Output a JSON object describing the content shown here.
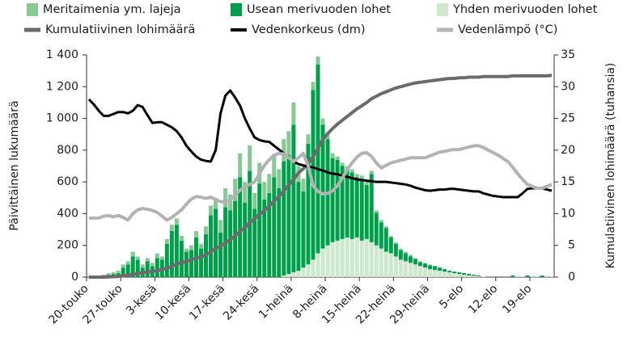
{
  "chart_data": {
    "type": "bar",
    "stacked": true,
    "y_label": "Päivittäinen lukumäärä",
    "y2_label": "Kumulatiivinen lohimäärä (tuhansia)",
    "categories": [
      "20-touko",
      null,
      null,
      null,
      null,
      null,
      null,
      "27-touko",
      null,
      null,
      null,
      null,
      null,
      null,
      "3-kesä",
      null,
      null,
      null,
      null,
      null,
      null,
      "10-kesä",
      null,
      null,
      null,
      null,
      null,
      null,
      "17-kesä",
      null,
      null,
      null,
      null,
      null,
      null,
      "24-kesä",
      null,
      null,
      null,
      null,
      null,
      null,
      "1-heinä",
      null,
      null,
      null,
      null,
      null,
      null,
      "8-heinä",
      null,
      null,
      null,
      null,
      null,
      null,
      "15-heinä",
      null,
      null,
      null,
      null,
      null,
      null,
      "22-heinä",
      null,
      null,
      null,
      null,
      null,
      null,
      "29-heinä",
      null,
      null,
      null,
      null,
      null,
      null,
      "5-elo",
      null,
      null,
      null,
      null,
      null,
      null,
      "12-elo",
      null,
      null,
      null,
      null,
      null,
      null,
      "19-elo",
      null,
      null,
      null,
      null
    ],
    "ylim": [
      0,
      1400
    ],
    "yticks": [
      0,
      200,
      400,
      600,
      800,
      {
        "value": 1000,
        "label": "1 000"
      },
      {
        "value": 1200,
        "label": "1 200"
      },
      {
        "value": 1400,
        "label": "1 400"
      }
    ],
    "y2lim": [
      0,
      35
    ],
    "y2ticks": [
      0,
      5,
      10,
      15,
      20,
      25,
      30,
      35
    ],
    "series": [
      {
        "name": "Meritaimenia ym. lajeja",
        "color": "#86c994",
        "values": [
          0,
          0,
          0,
          5,
          10,
          10,
          15,
          20,
          20,
          30,
          20,
          20,
          20,
          20,
          30,
          20,
          30,
          40,
          40,
          30,
          20,
          30,
          40,
          30,
          50,
          60,
          70,
          80,
          120,
          100,
          140,
          150,
          130,
          160,
          100,
          130,
          110,
          120,
          130,
          120,
          140,
          150,
          140,
          100,
          80,
          60,
          50,
          50,
          40,
          30,
          30,
          20,
          20,
          20,
          20,
          20,
          20,
          20,
          20,
          15,
          15,
          10,
          10,
          10,
          10,
          10,
          10,
          5,
          5,
          5,
          5,
          0,
          0,
          0,
          0,
          0,
          0,
          0,
          0,
          0,
          0,
          0,
          0,
          0,
          0,
          0,
          0,
          0,
          0,
          0,
          0,
          0,
          0,
          0,
          0,
          0
        ]
      },
      {
        "name": "Usean merivuoden lohet",
        "color": "#00a04b",
        "values": [
          0,
          0,
          0,
          10,
          15,
          20,
          25,
          60,
          80,
          130,
          110,
          60,
          100,
          70,
          120,
          110,
          210,
          290,
          330,
          230,
          160,
          170,
          250,
          180,
          270,
          390,
          430,
          280,
          440,
          420,
          480,
          630,
          470,
          670,
          430,
          590,
          490,
          530,
          630,
          560,
          720,
          750,
          930,
          560,
          480,
          760,
          1070,
          1190,
          780,
          670,
          530,
          510,
          460,
          430,
          420,
          380,
          390,
          340,
          430,
          205,
          165,
          150,
          100,
          80,
          60,
          50,
          40,
          35,
          25,
          25,
          25,
          25,
          20,
          15,
          10,
          10,
          10,
          10,
          10,
          7,
          5,
          0,
          0,
          0,
          0,
          0,
          0,
          10,
          0,
          0,
          10,
          0,
          0,
          10,
          0,
          0
        ]
      },
      {
        "name": "Yhden merivuoden lohet",
        "color": "#cde8cc",
        "values": [
          0,
          0,
          0,
          0,
          0,
          0,
          0,
          0,
          0,
          0,
          0,
          0,
          0,
          0,
          0,
          0,
          0,
          0,
          0,
          0,
          0,
          0,
          0,
          0,
          0,
          0,
          0,
          0,
          0,
          0,
          0,
          0,
          0,
          0,
          0,
          0,
          0,
          0,
          0,
          0,
          10,
          20,
          30,
          40,
          60,
          80,
          110,
          150,
          180,
          200,
          220,
          230,
          240,
          250,
          240,
          250,
          230,
          240,
          220,
          200,
          180,
          160,
          150,
          130,
          110,
          100,
          90,
          80,
          70,
          60,
          50,
          45,
          40,
          35,
          30,
          25,
          20,
          15,
          10,
          8,
          5,
          3,
          0,
          0,
          0,
          0,
          0,
          0,
          10,
          5,
          0,
          10,
          5,
          0,
          10,
          5
        ]
      },
      {
        "name": "Kumulatiivinen lohimäärä",
        "type": "line",
        "axis": "y2",
        "color": "#6b6b6b",
        "width": 4,
        "values": [
          0,
          0,
          0,
          0,
          0.03,
          0.06,
          0.1,
          0.2,
          0.3,
          0.4,
          0.6,
          0.7,
          0.8,
          0.9,
          1.0,
          1.2,
          1.4,
          1.7,
          2.1,
          2.3,
          2.5,
          2.7,
          3.0,
          3.2,
          3.5,
          4.0,
          4.5,
          4.9,
          5.4,
          5.9,
          6.5,
          7.2,
          7.8,
          8.6,
          9.2,
          9.9,
          10.5,
          11.2,
          12.0,
          12.7,
          13.6,
          14.5,
          15.4,
          16.4,
          17.1,
          17.9,
          19.0,
          20.3,
          21.7,
          22.6,
          23.4,
          24.1,
          24.7,
          25.3,
          25.9,
          26.5,
          27.0,
          27.5,
          28.1,
          28.5,
          28.9,
          29.2,
          29.5,
          29.8,
          30.0,
          30.2,
          30.4,
          30.6,
          30.7,
          30.8,
          30.9,
          31.0,
          31.1,
          31.2,
          31.3,
          31.3,
          31.4,
          31.4,
          31.5,
          31.5,
          31.5,
          31.6,
          31.6,
          31.6,
          31.6,
          31.6,
          31.6,
          31.7,
          31.7,
          31.7,
          31.7,
          31.7,
          31.7,
          31.7,
          31.7,
          31.8
        ]
      },
      {
        "name": "Vedenkorkeus (dm)",
        "type": "line",
        "axis": "y2",
        "color": "#000000",
        "width": 3,
        "values": [
          28,
          27.2,
          26.2,
          25.4,
          25.4,
          25.7,
          26,
          26,
          25.8,
          26.2,
          27.1,
          26.8,
          25.5,
          24.3,
          24.4,
          24.4,
          24,
          23.6,
          23,
          22,
          20.7,
          19.8,
          19,
          18.5,
          18.3,
          18.2,
          20,
          25.8,
          28.6,
          29.4,
          28.3,
          27,
          25,
          23.4,
          22,
          21.6,
          21.4,
          21.3,
          20.7,
          20.1,
          19.5,
          18.8,
          18.2,
          17.8,
          17.6,
          17.4,
          17.3,
          17.0,
          16.8,
          16.5,
          16.3,
          16.2,
          16.0,
          15.8,
          15.6,
          15.4,
          15.3,
          15.2,
          15.1,
          15.0,
          15.0,
          15.0,
          14.9,
          14.8,
          14.7,
          14.6,
          14.4,
          14.1,
          13.9,
          13.7,
          13.6,
          13.7,
          13.8,
          13.8,
          13.9,
          13.9,
          13.8,
          13.7,
          13.6,
          13.5,
          13.5,
          13.2,
          13.0,
          12.8,
          12.7,
          12.6,
          12.6,
          12.6,
          12.6,
          13.2,
          13.9,
          14.0,
          14.0,
          14.0,
          13.8,
          13.6
        ]
      },
      {
        "name": "Vedenlämpö (°C)",
        "type": "line",
        "axis": "y2",
        "color": "#b3b3b3",
        "width": 4,
        "values": [
          9.3,
          9.3,
          9.3,
          9.6,
          9.7,
          9.5,
          9.7,
          9.4,
          9.0,
          10.0,
          10.6,
          10.8,
          10.7,
          10.5,
          10.2,
          9.6,
          9.0,
          9.4,
          10.0,
          10.6,
          11.5,
          12.3,
          12.7,
          12.6,
          12.4,
          12.6,
          12.2,
          11.9,
          11.8,
          12.2,
          12.9,
          13.7,
          14.2,
          14.6,
          15.0,
          16.3,
          17.6,
          18.5,
          19.2,
          19.5,
          19.4,
          18.8,
          18.2,
          18.8,
          19.5,
          17.5,
          14.4,
          13.5,
          13.1,
          13.2,
          13.6,
          14.4,
          15.6,
          16.9,
          18.0,
          18.9,
          19.5,
          19.6,
          19.0,
          18.0,
          17.2,
          17.6,
          18.0,
          18.2,
          18.4,
          18.6,
          18.8,
          18.8,
          18.8,
          18.8,
          19.1,
          19.4,
          19.7,
          19.8,
          20.0,
          20.1,
          20.1,
          20.3,
          20.5,
          20.7,
          20.7,
          20.4,
          20.0,
          19.6,
          19.2,
          18.7,
          18.2,
          17.3,
          16.3,
          15.4,
          14.6,
          14.3,
          14.0,
          14.0,
          14.3,
          14.6
        ]
      }
    ]
  }
}
